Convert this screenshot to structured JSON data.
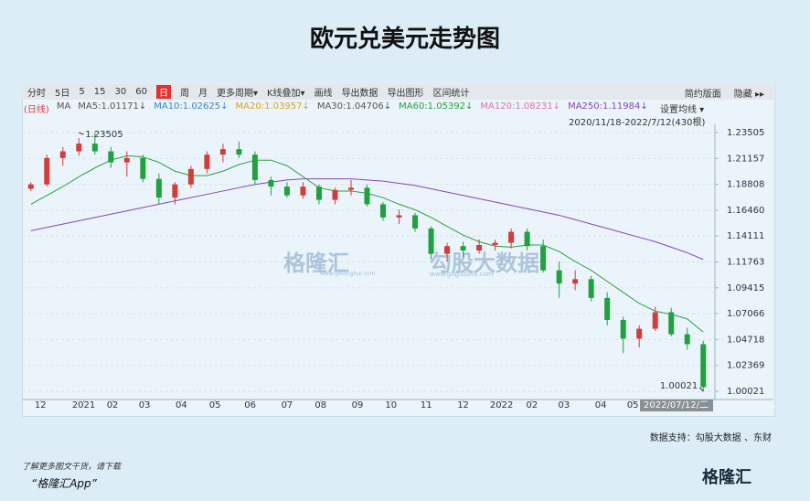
{
  "title": "欧元兑美元走势图",
  "toolbar": {
    "items": [
      "分时",
      "5日",
      "5",
      "15",
      "30",
      "60",
      "日",
      "周",
      "月",
      "更多周期▾",
      "K线叠加▾",
      "画线",
      "导出数据",
      "导出图形",
      "区间统计"
    ],
    "active_index": 6,
    "right": [
      "简约版面",
      "隐藏 ▸▸"
    ]
  },
  "chart_data": {
    "type": "candlestick",
    "ma_labels": [
      {
        "text": "(日线)",
        "color": "#d04040"
      },
      {
        "text": "MA",
        "color": "#555555"
      },
      {
        "text": "MA5:1.01171↓",
        "color": "#555555"
      },
      {
        "text": "MA10:1.02625↓",
        "color": "#3a86c8"
      },
      {
        "text": "MA20:1.03957↓",
        "color": "#e0a020"
      },
      {
        "text": "MA30:1.04706↓",
        "color": "#555555"
      },
      {
        "text": "MA60:1.05392↓",
        "color": "#2aa040"
      },
      {
        "text": "MA120:1.08231↓",
        "color": "#e070b0"
      },
      {
        "text": "MA250:1.11984↓",
        "color": "#8844bb"
      }
    ],
    "settings_label": "设置均线 ▾",
    "range_label": "2020/11/18-2022/7/12(430根)",
    "cursor_label": "2022/07/12/二",
    "up_color": "#d23c3c",
    "down_color": "#22a040",
    "x": [
      5,
      15,
      25,
      35,
      45,
      55,
      65,
      75,
      85,
      95,
      105,
      115,
      125,
      135,
      145,
      155,
      165,
      175,
      185,
      195,
      205,
      215,
      225,
      235,
      245,
      255,
      265,
      275,
      285,
      295,
      305,
      315,
      325,
      335,
      345,
      355,
      365,
      375,
      385,
      395,
      405,
      415,
      425
    ],
    "open": [
      1.184,
      1.188,
      1.212,
      1.218,
      1.225,
      1.218,
      1.208,
      1.212,
      1.193,
      1.176,
      1.188,
      1.202,
      1.215,
      1.22,
      1.215,
      1.192,
      1.186,
      1.178,
      1.186,
      1.174,
      1.183,
      1.185,
      1.17,
      1.158,
      1.16,
      1.148,
      1.125,
      1.132,
      1.128,
      1.133,
      1.135,
      1.145,
      1.132,
      1.11,
      1.098,
      1.102,
      1.085,
      1.065,
      1.048,
      1.057,
      1.072,
      1.052,
      1.043
    ],
    "high": [
      1.19,
      1.215,
      1.222,
      1.23,
      1.235,
      1.222,
      1.218,
      1.215,
      1.198,
      1.19,
      1.205,
      1.218,
      1.225,
      1.227,
      1.218,
      1.195,
      1.19,
      1.19,
      1.188,
      1.185,
      1.192,
      1.188,
      1.172,
      1.165,
      1.162,
      1.15,
      1.135,
      1.136,
      1.138,
      1.138,
      1.148,
      1.148,
      1.138,
      1.118,
      1.11,
      1.105,
      1.09,
      1.068,
      1.06,
      1.077,
      1.076,
      1.058,
      1.046
    ],
    "low": [
      1.182,
      1.186,
      1.205,
      1.214,
      1.215,
      1.203,
      1.195,
      1.19,
      1.17,
      1.17,
      1.185,
      1.198,
      1.208,
      1.212,
      1.188,
      1.178,
      1.176,
      1.175,
      1.17,
      1.17,
      1.178,
      1.168,
      1.155,
      1.152,
      1.145,
      1.12,
      1.118,
      1.122,
      1.125,
      1.128,
      1.13,
      1.128,
      1.108,
      1.085,
      1.092,
      1.082,
      1.06,
      1.035,
      1.04,
      1.055,
      1.05,
      1.038,
      1.0
    ],
    "close": [
      1.188,
      1.212,
      1.218,
      1.225,
      1.218,
      1.208,
      1.212,
      1.193,
      1.176,
      1.188,
      1.202,
      1.215,
      1.22,
      1.215,
      1.192,
      1.186,
      1.178,
      1.186,
      1.174,
      1.183,
      1.185,
      1.17,
      1.158,
      1.16,
      1.148,
      1.125,
      1.132,
      1.128,
      1.133,
      1.135,
      1.145,
      1.132,
      1.11,
      1.098,
      1.102,
      1.085,
      1.065,
      1.048,
      1.057,
      1.072,
      1.052,
      1.043,
      1.004
    ],
    "lines": [
      {
        "color": "#8844bb",
        "values": [
          1.146,
          1.149,
          1.152,
          1.155,
          1.158,
          1.161,
          1.164,
          1.167,
          1.17,
          1.173,
          1.176,
          1.179,
          1.182,
          1.185,
          1.188,
          1.19,
          1.192,
          1.193,
          1.193,
          1.193,
          1.193,
          1.192,
          1.191,
          1.189,
          1.187,
          1.184,
          1.181,
          1.178,
          1.175,
          1.172,
          1.169,
          1.166,
          1.163,
          1.16,
          1.156,
          1.152,
          1.148,
          1.144,
          1.14,
          1.136,
          1.131,
          1.126,
          1.11984
        ]
      },
      {
        "color": "#2aa040",
        "values": [
          1.17,
          1.178,
          1.186,
          1.195,
          1.203,
          1.21,
          1.214,
          1.213,
          1.208,
          1.2,
          1.196,
          1.196,
          1.2,
          1.206,
          1.21,
          1.21,
          1.205,
          1.195,
          1.185,
          1.182,
          1.182,
          1.18,
          1.176,
          1.17,
          1.165,
          1.158,
          1.15,
          1.142,
          1.136,
          1.132,
          1.131,
          1.133,
          1.133,
          1.127,
          1.118,
          1.11,
          1.1,
          1.09,
          1.08,
          1.073,
          1.07,
          1.066,
          1.05392
        ]
      }
    ],
    "annotations": [
      {
        "x": 35,
        "y": 1.23505
      },
      {
        "x": 425,
        "y": 1.00021
      }
    ],
    "xlim": [
      0,
      430
    ],
    "xticks": [
      {
        "value": 11,
        "label": "12"
      },
      {
        "value": 38,
        "label": "2021"
      },
      {
        "value": 56,
        "label": "02"
      },
      {
        "value": 76,
        "label": "03"
      },
      {
        "value": 99,
        "label": "04"
      },
      {
        "value": 120,
        "label": "05"
      },
      {
        "value": 142,
        "label": "06"
      },
      {
        "value": 165,
        "label": "07"
      },
      {
        "value": 186,
        "label": "08"
      },
      {
        "value": 209,
        "label": "09"
      },
      {
        "value": 230,
        "label": "10"
      },
      {
        "value": 252,
        "label": "11"
      },
      {
        "value": 275,
        "label": "12"
      },
      {
        "value": 299,
        "label": "2022"
      },
      {
        "value": 318,
        "label": "02"
      },
      {
        "value": 338,
        "label": "03"
      },
      {
        "value": 361,
        "label": "04"
      },
      {
        "value": 381,
        "label": "05"
      }
    ],
    "ylim": [
      0.9936,
      1.2392
    ],
    "yticks": [
      1.23505,
      1.21157,
      1.18808,
      {
        "value": 1.1646,
        "label": "1.16460"
      },
      1.14111,
      1.11763,
      1.09415,
      1.07066,
      1.04718,
      1.02369,
      1.00021
    ],
    "grid": true
  },
  "watermark": {
    "brand": "格隆汇",
    "brand_url": "www.gelonghui.com",
    "data_brand": "勾股大数据",
    "data_url": "www.gogudata.com"
  },
  "source": "数据支持：勾股大数据 、东财",
  "footer": {
    "line1": "了解更多图文干货，请下载",
    "line2": "“格隆汇App”",
    "logo": "格隆汇"
  }
}
